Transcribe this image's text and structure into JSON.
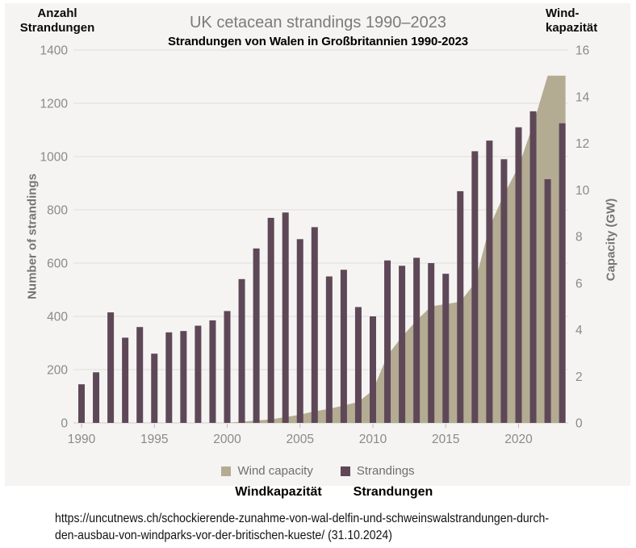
{
  "page": {
    "left_axis_title_line1": "Anzahl",
    "left_axis_title_line2": "Strandungen",
    "right_axis_title_line1": "Wind-",
    "right_axis_title_line2": "kapazität",
    "title": "UK cetacean strandings 1990–2023",
    "subtitle": "Strandungen von Walen in Großbritannien 1990-2023",
    "left_axis_label": "Number of strandings",
    "right_axis_label": "Capacity (GW)",
    "legend": {
      "wind_label": "Wind capacity",
      "strandings_label": "Strandings",
      "wind_label_de": "Windkapazität",
      "strandings_label_de": "Strandungen"
    },
    "caption_line1": "https://uncutnews.ch/schockierende-zunahme-von-wal-delfin-und-schweinswalstrandungen-durch-",
    "caption_line2": "den-ausbau-von-windparks-vor-der-britischen-kueste/ (31.10.2024)"
  },
  "colors": {
    "bar": "#5e4857",
    "wind_area": "#b4ab93",
    "card_bg": "#f5f4f2",
    "grid": "#e4e2df",
    "baseline": "#d8d5d2",
    "tick": "#bdbab7",
    "axis_text": "#8a8a8a",
    "title_text": "#7b7b7b",
    "legend_text": "#6e6e6e"
  },
  "chart_data": {
    "type": "bar",
    "title": "UK cetacean strandings 1990–2023",
    "subtitle": "Strandungen von Walen in Großbritannien 1990-2023",
    "grid": true,
    "legend_position": "bottom",
    "years": [
      1990,
      1991,
      1992,
      1993,
      1994,
      1995,
      1996,
      1997,
      1998,
      1999,
      2000,
      2001,
      2002,
      2003,
      2004,
      2005,
      2006,
      2007,
      2008,
      2009,
      2010,
      2011,
      2012,
      2013,
      2014,
      2015,
      2016,
      2017,
      2018,
      2019,
      2020,
      2021,
      2022,
      2023
    ],
    "x_ticks": [
      1990,
      1995,
      2000,
      2005,
      2010,
      2015,
      2020
    ],
    "left_axis": {
      "label": "Number of strandings",
      "min": 0,
      "max": 1400,
      "step": 200
    },
    "right_axis": {
      "label": "Capacity (GW)",
      "min": 0,
      "max": 16,
      "step": 2
    },
    "series": [
      {
        "name": "Strandings",
        "chart_type": "bar",
        "axis": "left",
        "color": "#5e4857",
        "values": [
          145,
          190,
          415,
          320,
          360,
          260,
          340,
          345,
          365,
          385,
          420,
          540,
          655,
          770,
          790,
          690,
          735,
          550,
          575,
          435,
          400,
          610,
          590,
          620,
          600,
          560,
          870,
          1020,
          1060,
          990,
          1110,
          1170,
          915,
          1125
        ]
      },
      {
        "name": "Wind capacity",
        "chart_type": "area",
        "axis": "right",
        "color": "#b4ab93",
        "values": [
          0,
          0,
          0,
          0,
          0,
          0,
          0,
          0,
          0,
          0,
          0,
          0.05,
          0.1,
          0.15,
          0.25,
          0.35,
          0.5,
          0.6,
          0.75,
          0.9,
          1.4,
          2.9,
          3.7,
          4.4,
          5.0,
          5.1,
          5.2,
          6.0,
          8.4,
          9.8,
          11.0,
          12.8,
          14.9,
          14.9
        ]
      }
    ]
  }
}
